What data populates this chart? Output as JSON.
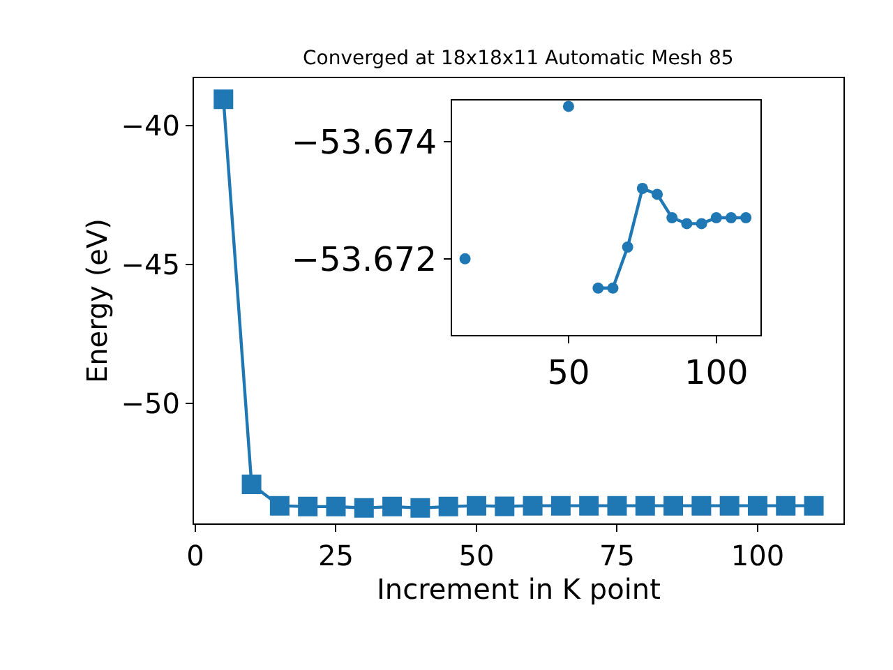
{
  "chart_data": [
    {
      "type": "line",
      "title": "Converged at 18x18x11 Automatic Mesh 85",
      "xlabel": "Increment in K point",
      "ylabel": "Energy (eV)",
      "marker": "square",
      "line_style": "solid",
      "x": [
        5,
        10,
        15,
        20,
        25,
        30,
        35,
        40,
        45,
        50,
        55,
        60,
        65,
        70,
        75,
        80,
        85,
        90,
        95,
        100,
        105,
        110
      ],
      "series": [
        {
          "color": "#1f77b4",
          "values": [
            -39.05,
            -52.9,
            -53.67,
            -53.7,
            -53.7,
            -53.75,
            -53.7,
            -53.75,
            -53.7,
            -53.67,
            -53.69,
            -53.67,
            -53.67,
            -53.67,
            -53.67,
            -53.67,
            -53.67,
            -53.67,
            -53.67,
            -53.67,
            -53.67,
            -53.67
          ]
        }
      ],
      "xlim": [
        -0.25,
        115.25
      ],
      "ylim": [
        -54.3,
        -38.3
      ],
      "xticks": [
        0,
        25,
        50,
        75,
        100
      ],
      "yticks": [
        -40,
        -45,
        -50
      ]
    },
    {
      "type": "line",
      "marker": "circle",
      "line_style": "solid",
      "x": [
        15,
        20,
        25,
        30,
        35,
        40,
        45,
        50,
        55,
        60,
        65,
        70,
        75,
        80,
        85,
        90,
        95,
        100,
        105,
        110
      ],
      "series": [
        {
          "color": "#1f77b4",
          "values": [
            -53.672,
            null,
            null,
            null,
            null,
            null,
            null,
            -53.6746,
            null,
            -53.6715,
            -53.6715,
            -53.6722,
            -53.6732,
            -53.6731,
            -53.6727,
            -53.6726,
            -53.6726,
            -53.6727,
            -53.6727,
            -53.6727
          ]
        }
      ],
      "xlim": [
        10.5,
        114.8
      ],
      "ylim": [
        -53.6707,
        -53.6747
      ],
      "xticks": [
        50,
        100
      ],
      "yticks": [
        -53.674,
        -53.672
      ]
    }
  ]
}
